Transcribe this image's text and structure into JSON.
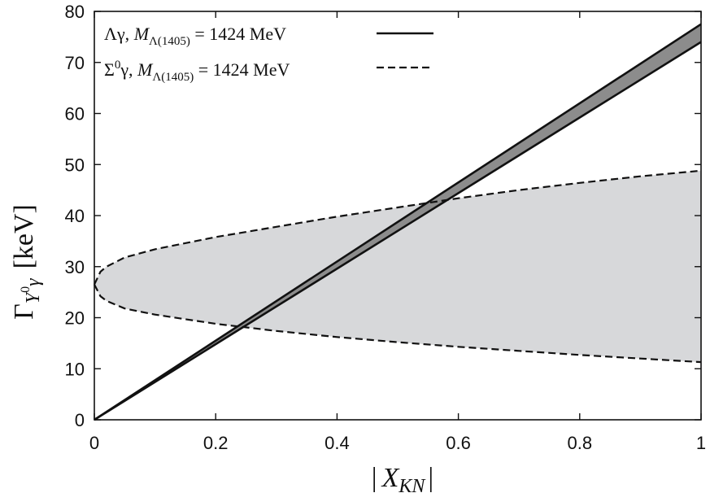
{
  "chart_data": {
    "type": "line",
    "xlabel_prefix": "|",
    "xlabel_main": "X",
    "xlabel_sub": "KN",
    "xlabel_suffix": "|",
    "ylabel_main": "Γ",
    "ylabel_sub": "Y",
    "ylabel_sub_sup": "0",
    "ylabel_sub2": "γ",
    "ylabel_unit": "[keV]",
    "xlim": [
      0,
      1
    ],
    "ylim": [
      0,
      80
    ],
    "xticks": [
      0,
      0.2,
      0.4,
      0.6,
      0.8,
      1
    ],
    "xtick_labels": [
      "0",
      "0.2",
      "0.4",
      "0.6",
      "0.8",
      "1"
    ],
    "yticks": [
      0,
      10,
      20,
      30,
      40,
      50,
      60,
      70,
      80
    ],
    "ytick_labels": [
      "0",
      "10",
      "20",
      "30",
      "40",
      "50",
      "60",
      "70",
      "80"
    ],
    "grid": false,
    "legend_position": "top-left",
    "series": [
      {
        "name_part1": "Λγ,  ",
        "name_part2": "M",
        "name_part3": "Λ(1405)",
        "name_part4": " = 1424 MeV",
        "style": "solid",
        "band_fill": "#8c8c8c",
        "upper": {
          "x": [
            0,
            1
          ],
          "y": [
            0,
            77.5
          ]
        },
        "lower": {
          "x": [
            0,
            1
          ],
          "y": [
            0,
            74
          ]
        }
      },
      {
        "name_part1": "Σ",
        "name_part1_sup": "0",
        "name_part1b": "γ,  ",
        "name_part2": "M",
        "name_part3": "Λ(1405)",
        "name_part4": " = 1424 MeV",
        "style": "dashed",
        "band_fill": "#d7d8da",
        "upper": {
          "x": [
            0,
            0.01,
            0.02,
            0.05,
            0.1,
            0.2,
            0.3,
            0.4,
            0.5,
            0.6,
            0.7,
            0.8,
            0.9,
            1.0
          ],
          "y": [
            26.5,
            29.0,
            30.0,
            31.8,
            33.4,
            35.8,
            37.8,
            39.8,
            41.6,
            43.4,
            45.0,
            46.4,
            47.7,
            48.8
          ]
        },
        "lower": {
          "x": [
            0,
            0.01,
            0.02,
            0.05,
            0.1,
            0.2,
            0.3,
            0.4,
            0.5,
            0.6,
            0.7,
            0.8,
            0.9,
            1.0
          ],
          "y": [
            26.5,
            24.2,
            23.3,
            21.8,
            20.6,
            18.8,
            17.4,
            16.2,
            15.2,
            14.3,
            13.5,
            12.7,
            12.0,
            11.3
          ]
        }
      }
    ]
  }
}
